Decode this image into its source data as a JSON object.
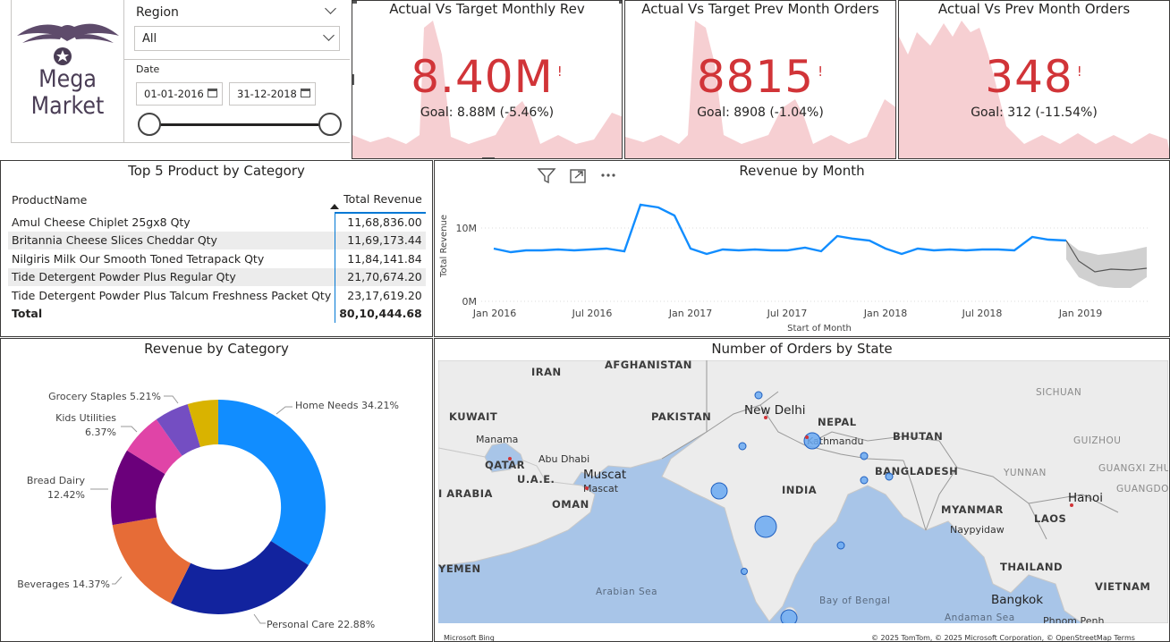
{
  "logo": {
    "line1": "Mega",
    "line2": "Market"
  },
  "slicers": {
    "region": {
      "label": "Region",
      "value": "All"
    },
    "date": {
      "label": "Date",
      "start": "01-01-2016",
      "end": "31-12-2018"
    }
  },
  "kpis": [
    {
      "title": "Actual Vs Target Monthly Rev",
      "value": "8.40M",
      "alert": "!",
      "goal": "Goal: 8.88M (-5.46%)"
    },
    {
      "title": "Actual Vs Target Prev Month Orders",
      "value": "8815",
      "alert": "!",
      "goal": "Goal: 8908 (-1.04%)"
    },
    {
      "title": "Actual Vs Prev Month Orders",
      "value": "348",
      "alert": "!",
      "goal": "Goal: 312 (-11.54%)"
    }
  ],
  "colors": {
    "accent": "#0078d4",
    "alert": "#d13438",
    "spark": "#f4c9cc",
    "line": "#118dff"
  },
  "top_products": {
    "title": "Top 5 Product by Category",
    "headers": [
      "ProductName",
      "Total Revenue"
    ],
    "rows": [
      {
        "name": "Amul Cheese Chiplet 25gx8 Qty",
        "revenue": "11,68,836.00"
      },
      {
        "name": "Britannia Cheese Slices Cheddar Qty",
        "revenue": "11,69,173.44"
      },
      {
        "name": "Nilgiris Milk Our Smooth Toned Tetrapack Qty",
        "revenue": "11,84,141.84"
      },
      {
        "name": "Tide Detergent Powder Plus Regular Qty",
        "revenue": "21,70,674.20"
      },
      {
        "name": "Tide Detergent Powder Plus Talcum Freshness Packet Qty",
        "revenue": "23,17,619.20"
      }
    ],
    "total_label": "Total",
    "total_value": "80,10,444.68"
  },
  "revenue_by_month": {
    "title": "Revenue by Month",
    "icons": [
      "filter-icon",
      "focus-mode-icon",
      "more-options-icon"
    ]
  },
  "revenue_by_category": {
    "title": "Revenue by Category"
  },
  "orders_by_state": {
    "title": "Number of Orders by State",
    "labels": {
      "iran": "IRAN",
      "afghanistan": "AFGHANISTAN",
      "pakistan": "PAKISTAN",
      "kuwait": "KUWAIT",
      "manama": "Manama",
      "qatar": "QATAR",
      "abudhabi": "Abu Dhabi",
      "uae": "U.A.E.",
      "muscat": "Muscat",
      "muscat_local": "Mascat",
      "saudi": "I ARABIA",
      "oman": "OMAN",
      "yemen": "YEMEN",
      "arabian_sea": "Arabian Sea",
      "new_delhi": "New Delhi",
      "nepal": "NEPAL",
      "kathmandu": "Kathmandu",
      "bhutan": "BHUTAN",
      "bangladesh": "BANGLADESH",
      "india": "INDIA",
      "myanmar": "MYANMAR",
      "naypyidaw": "Naypyidaw",
      "laos": "LAOS",
      "hanoi": "Hanoi",
      "thailand": "THAILAND",
      "bangkok": "Bangkok",
      "vietnam": "VIETNAM",
      "phnom_penh": "Phnom Penh",
      "bay_of_bengal": "Bay of Bengal",
      "andaman_sea": "Andaman Sea",
      "sichuan": "SICHUAN",
      "guizhou": "GUIZHOU",
      "guangxi": "GUANGXI ZHUANGZU",
      "guangdong": "GUANGDONG",
      "yunnan": "YUNNAN"
    },
    "attribution": "© 2025 TomTom, © 2025 Microsoft Corporation, © OpenStreetMap  Terms",
    "brand": "Microsoft Bing"
  }
}
